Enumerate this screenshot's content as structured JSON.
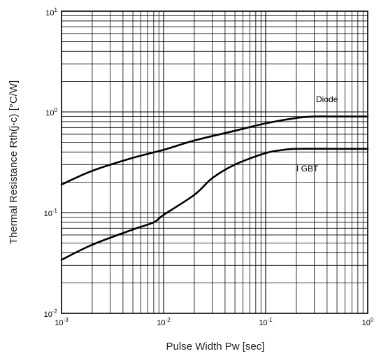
{
  "chart_data": {
    "type": "line",
    "title": "",
    "xlabel": "Pulse Width Pw [sec]",
    "ylabel": "Thermal Resistance Rth(j-c) [°C/W]",
    "x_scale": "log",
    "y_scale": "log",
    "xlim": [
      0.001,
      1
    ],
    "ylim": [
      0.01,
      10
    ],
    "grid": true,
    "legend": "none",
    "x_ticks": [
      {
        "value": 0.001,
        "base": "10",
        "exp": "-3"
      },
      {
        "value": 0.01,
        "base": "10",
        "exp": "-2"
      },
      {
        "value": 0.1,
        "base": "10",
        "exp": "-1"
      },
      {
        "value": 1,
        "base": "10",
        "exp": "0"
      }
    ],
    "y_ticks": [
      {
        "value": 0.01,
        "base": "10",
        "exp": "-2"
      },
      {
        "value": 0.1,
        "base": "10",
        "exp": "-1"
      },
      {
        "value": 1,
        "base": "10",
        "exp": "0"
      },
      {
        "value": 10,
        "base": "10",
        "exp": "1"
      }
    ],
    "series": [
      {
        "name": "Diode",
        "x": [
          0.001,
          0.002,
          0.005,
          0.01,
          0.02,
          0.05,
          0.1,
          0.2,
          0.3,
          0.5,
          1
        ],
        "y": [
          0.19,
          0.26,
          0.35,
          0.42,
          0.52,
          0.65,
          0.77,
          0.87,
          0.9,
          0.9,
          0.9
        ]
      },
      {
        "name": "I GBT",
        "x": [
          0.001,
          0.002,
          0.005,
          0.008,
          0.01,
          0.02,
          0.03,
          0.05,
          0.1,
          0.15,
          0.2,
          0.5,
          1
        ],
        "y": [
          0.034,
          0.048,
          0.068,
          0.08,
          0.095,
          0.15,
          0.22,
          0.3,
          0.39,
          0.42,
          0.43,
          0.43,
          0.43
        ]
      }
    ],
    "annotations": [
      {
        "text": "Diode",
        "series": "Diode"
      },
      {
        "text": "I GBT",
        "series": "I GBT"
      }
    ]
  }
}
